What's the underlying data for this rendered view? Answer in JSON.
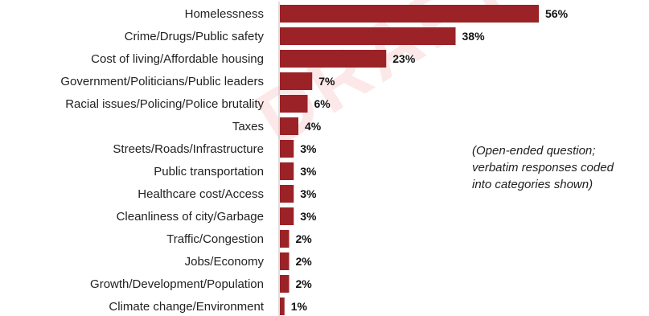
{
  "chart_data": {
    "type": "bar",
    "orientation": "horizontal",
    "categories": [
      "Homelessness",
      "Crime/Drugs/Public safety",
      "Cost of living/Affordable housing",
      "Government/Politicians/Public leaders",
      "Racial issues/Policing/Police brutality",
      "Taxes",
      "Streets/Roads/Infrastructure",
      "Public transportation",
      "Healthcare cost/Access",
      "Cleanliness of city/Garbage",
      "Traffic/Congestion",
      "Jobs/Economy",
      "Growth/Development/Population",
      "Climate change/Environment"
    ],
    "values": [
      56,
      38,
      23,
      7,
      6,
      4,
      3,
      3,
      3,
      3,
      2,
      2,
      2,
      1
    ],
    "value_labels": [
      "56%",
      "38%",
      "23%",
      "7%",
      "6%",
      "4%",
      "3%",
      "3%",
      "3%",
      "3%",
      "2%",
      "2%",
      "2%",
      "1%"
    ],
    "unit": "%",
    "xlim": [
      0,
      56
    ],
    "grid": false,
    "bar_color": "#9b2226"
  },
  "note": {
    "line1": "(Open-ended question;",
    "line2": "verbatim responses coded",
    "line3": "into categories shown)"
  },
  "watermark": "DRAFT"
}
